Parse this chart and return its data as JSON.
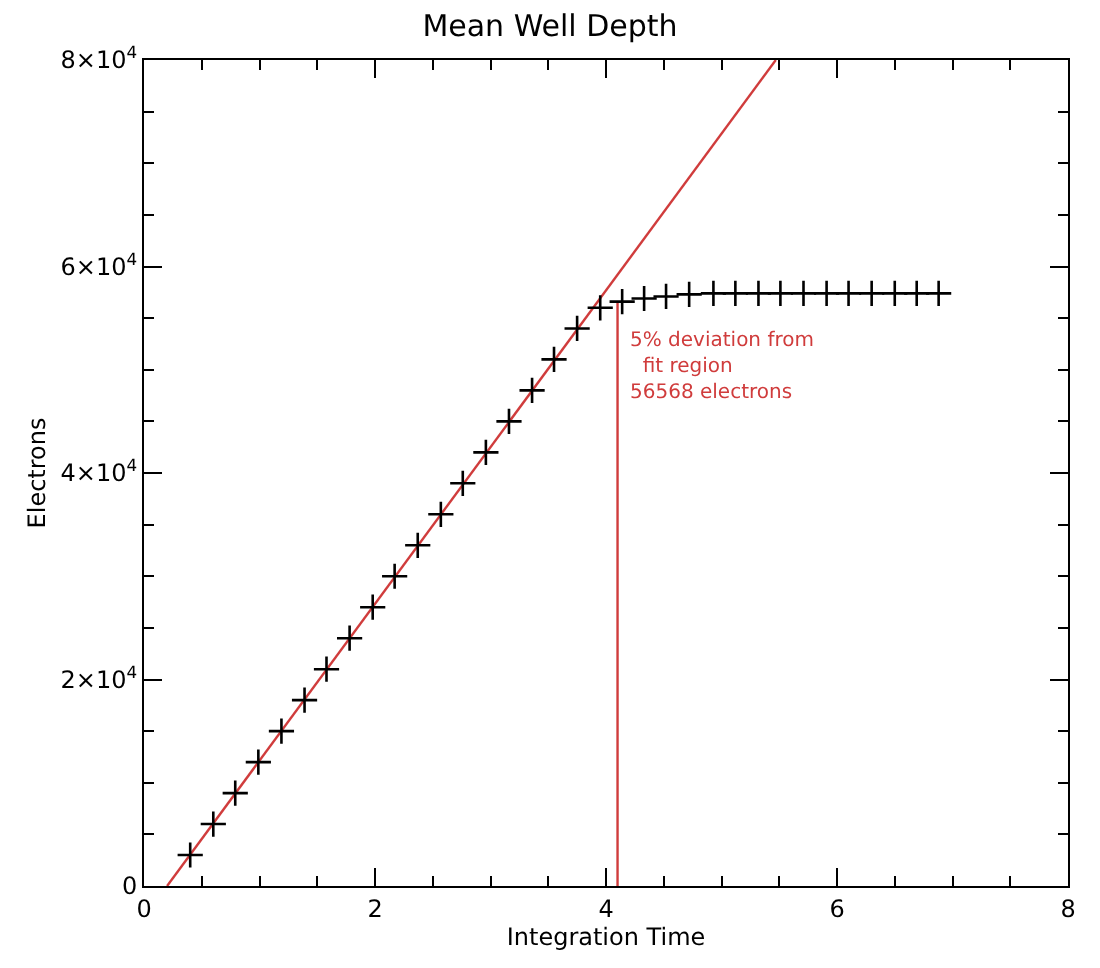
{
  "chart_data": {
    "type": "scatter",
    "title": "Mean Well Depth",
    "xlabel": "Integration Time",
    "ylabel": "Electrons",
    "xlim": [
      0,
      8
    ],
    "ylim": [
      0,
      80000
    ],
    "xticks": [
      0,
      {
        "value": 0.5,
        "label": null
      },
      {
        "value": 1,
        "label": null
      },
      {
        "value": 1.5,
        "label": null
      },
      2,
      {
        "value": 2.5,
        "label": null
      },
      {
        "value": 3,
        "label": null
      },
      {
        "value": 3.5,
        "label": null
      },
      4,
      {
        "value": 4.5,
        "label": null
      },
      {
        "value": 5,
        "label": null
      },
      {
        "value": 5.5,
        "label": null
      },
      6,
      {
        "value": 6.5,
        "label": null
      },
      {
        "value": 7,
        "label": null
      },
      {
        "value": 7.5,
        "label": null
      },
      8
    ],
    "yticks": [
      0,
      {
        "value": 5000,
        "label": null
      },
      {
        "value": 10000,
        "label": null
      },
      {
        "value": 15000,
        "label": null
      },
      {
        "value": 20000,
        "label": "2×10$^{4}$"
      },
      {
        "value": 25000,
        "label": null
      },
      {
        "value": 30000,
        "label": null
      },
      {
        "value": 35000,
        "label": null
      },
      {
        "value": 40000,
        "label": "4×10$^{4}$"
      },
      {
        "value": 45000,
        "label": null
      },
      {
        "value": 50000,
        "label": null
      },
      {
        "value": 55000,
        "label": null
      },
      {
        "value": 60000,
        "label": "6×10$^{4}$"
      },
      {
        "value": 65000,
        "label": null
      },
      {
        "value": 70000,
        "label": null
      },
      {
        "value": 75000,
        "label": null
      },
      {
        "value": 80000,
        "label": "8×10$^{4}$"
      }
    ],
    "series": [
      {
        "type": "line",
        "color": "#d03c3c",
        "x": [
          0.2,
          5.47
        ],
        "values": [
          0,
          80000
        ],
        "marker": "none",
        "line_style": "solid"
      },
      {
        "type": "line",
        "color": "#d03c3c",
        "x": [
          4.1,
          4.1
        ],
        "values": [
          0,
          56568
        ],
        "marker": "none",
        "line_style": "solid"
      },
      {
        "color": "#000000",
        "marker": "cross",
        "x": [
          0.4,
          0.6,
          0.79,
          0.99,
          1.19,
          1.39,
          1.58,
          1.78,
          1.98,
          2.17,
          2.37,
          2.57,
          2.76,
          2.96,
          3.16,
          3.36,
          3.55,
          3.75,
          3.95,
          4.14,
          4.33,
          4.52,
          4.72,
          4.93,
          5.12,
          5.32,
          5.51,
          5.71,
          5.91,
          6.1,
          6.3,
          6.5,
          6.69,
          6.88
        ],
        "values": [
          3000,
          6000,
          9000,
          12000,
          15000,
          18000,
          21000,
          24000,
          27000,
          30000,
          33000,
          36000,
          39000,
          42000,
          45000,
          48000,
          51000,
          54000,
          56000,
          56600,
          56900,
          57100,
          57300,
          57400,
          57400,
          57400,
          57400,
          57400,
          57400,
          57400,
          57400,
          57400,
          57400,
          57400
        ]
      }
    ],
    "annotations": [
      {
        "text": "5% deviation from\n  fit region\n56568 electrons",
        "x": 4.1,
        "y": 56568
      }
    ]
  }
}
